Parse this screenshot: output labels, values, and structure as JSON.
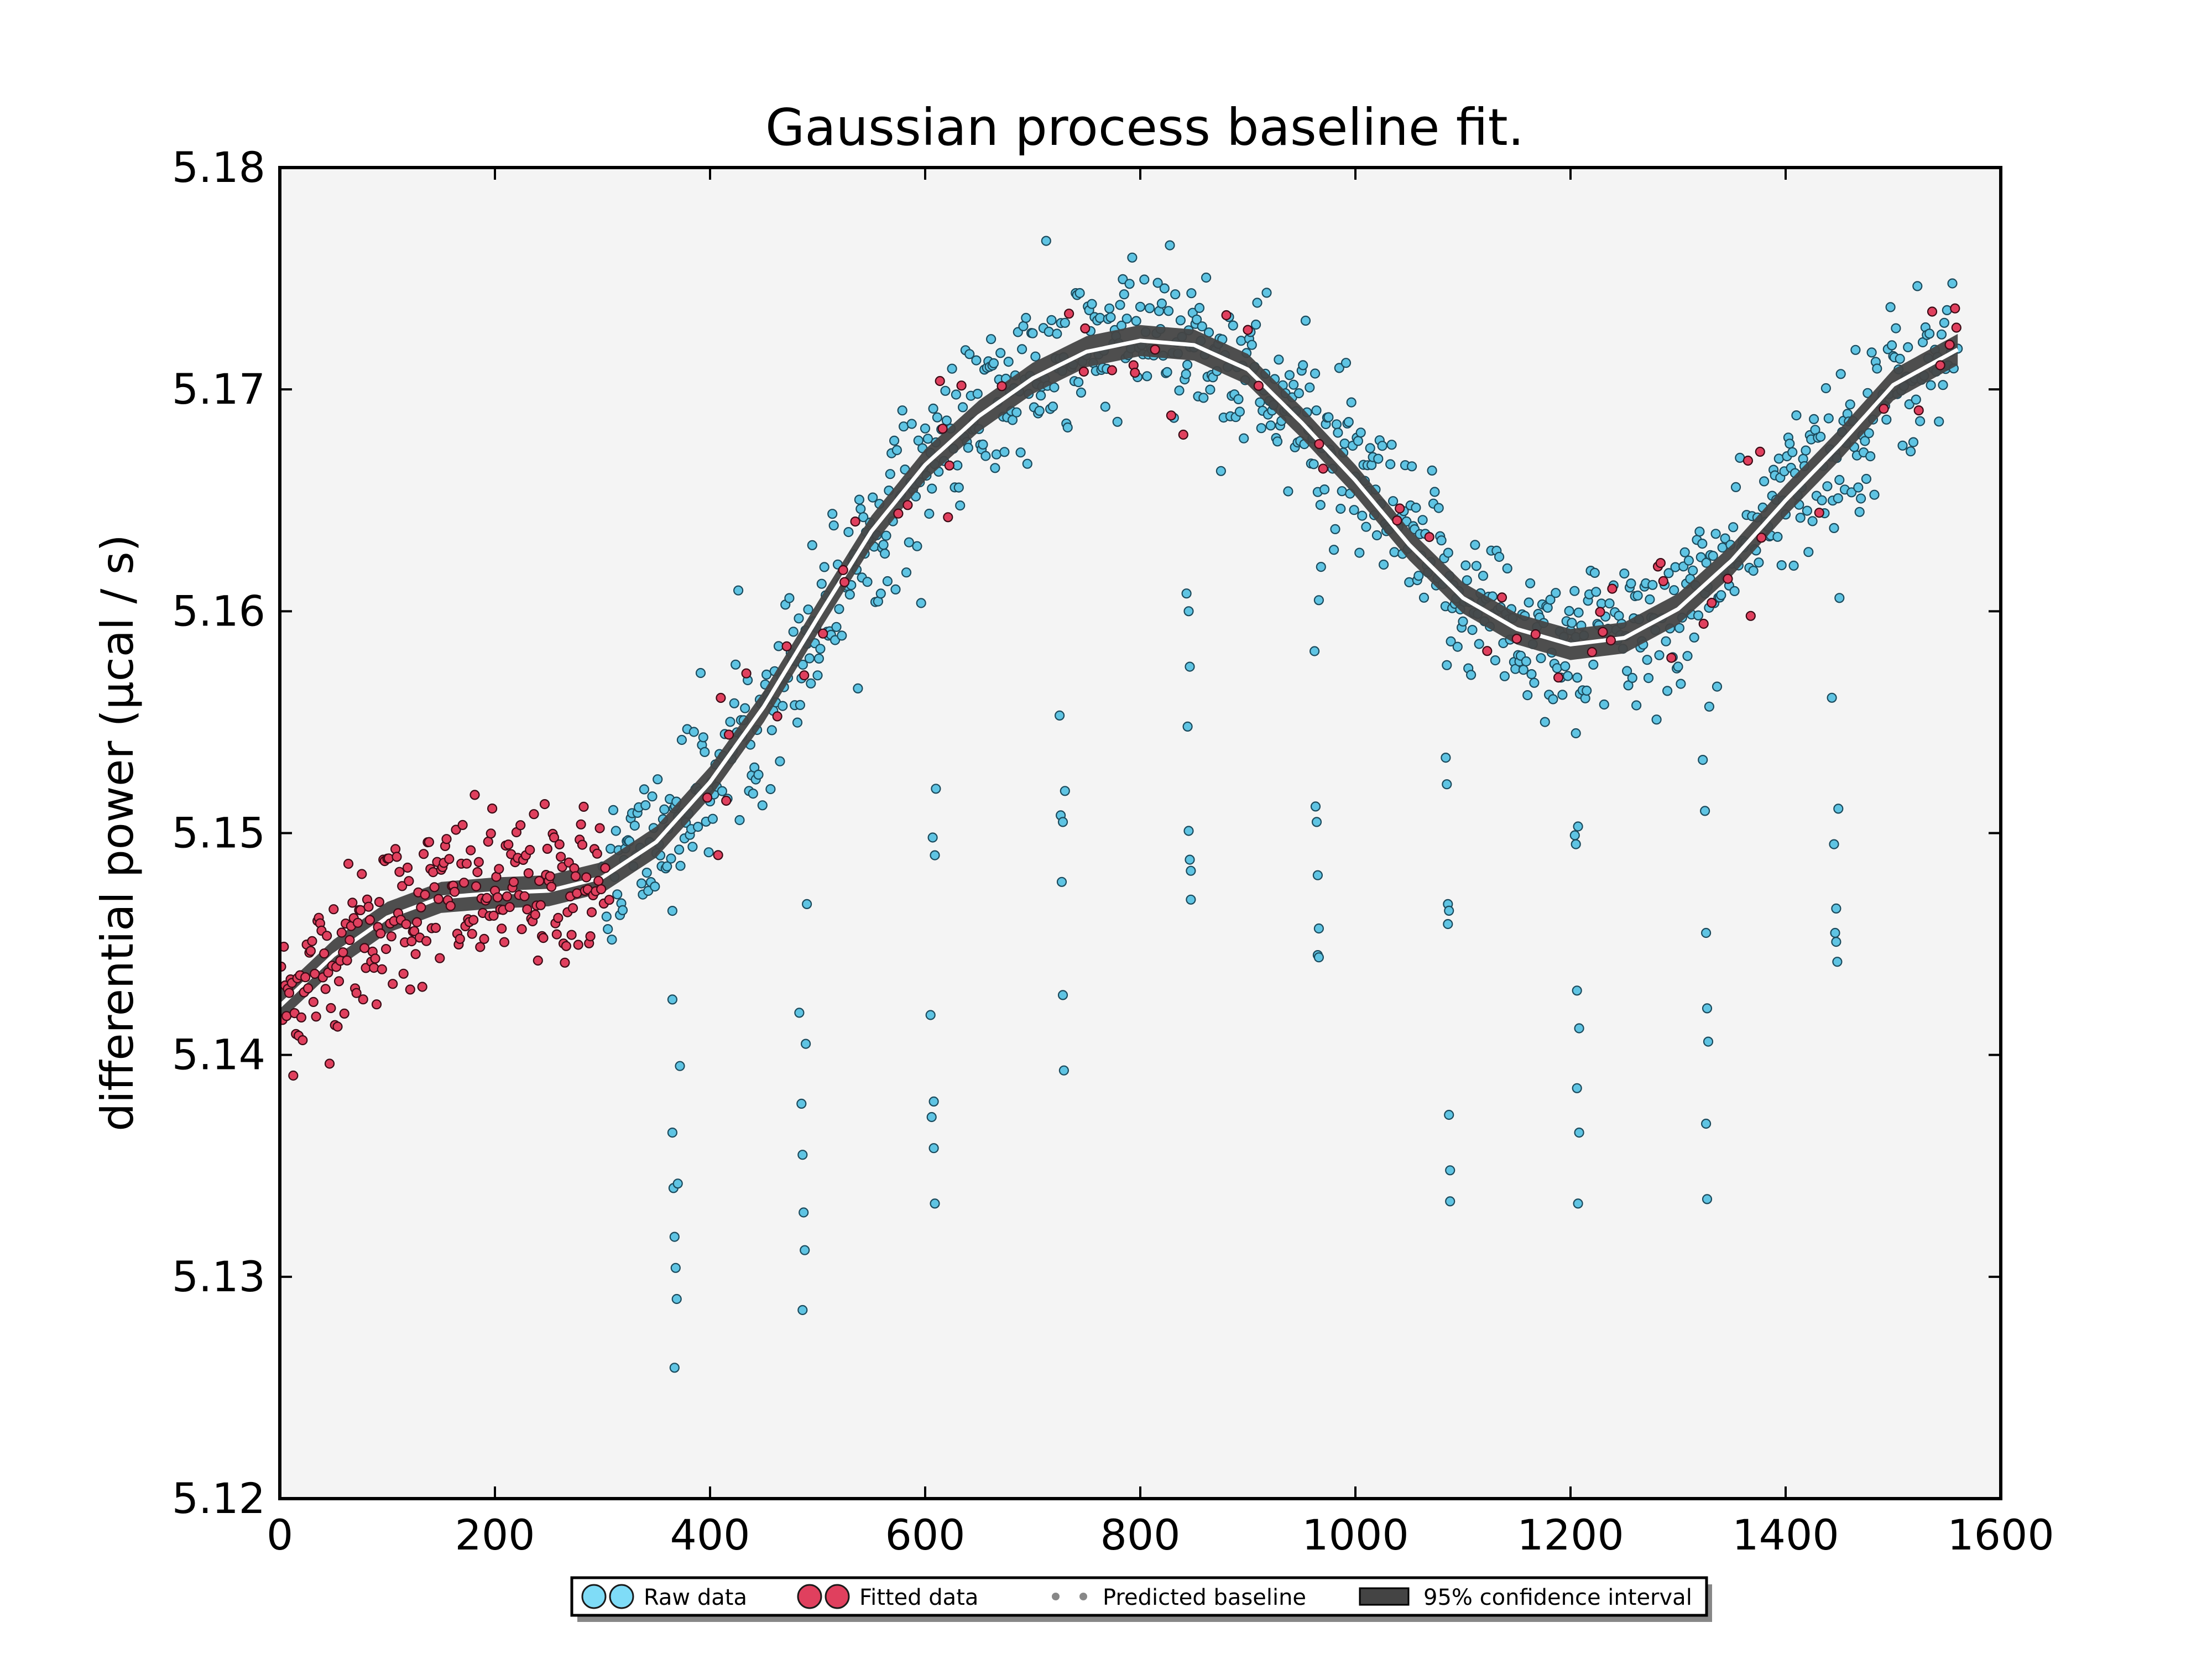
{
  "chart_data": {
    "type": "scatter",
    "title": "Gaussian process baseline fit.",
    "xlabel": "",
    "ylabel": "differential power (μcal / s)",
    "xlim": [
      0,
      1600
    ],
    "ylim": [
      5.12,
      5.18
    ],
    "xticks": [
      0,
      200,
      400,
      600,
      800,
      1000,
      1200,
      1400,
      1600
    ],
    "yticks": [
      5.12,
      5.13,
      5.14,
      5.15,
      5.16,
      5.17,
      5.18
    ],
    "xtick_labels": [
      "0",
      "200",
      "400",
      "600",
      "800",
      "1000",
      "1200",
      "1400",
      "1600"
    ],
    "ytick_labels": [
      "5.12",
      "5.13",
      "5.14",
      "5.15",
      "5.16",
      "5.17",
      "5.18"
    ],
    "grid": false,
    "legend_position": "bottom-center",
    "background_color": "#f4f4f4",
    "series": [
      {
        "name": "Raw data",
        "kind": "scatter",
        "color": "#5fc4e3",
        "note_points_are_approximate": true,
        "outliers": [
          [
            365,
            5.1365
          ],
          [
            366,
            5.134
          ],
          [
            367,
            5.1318
          ],
          [
            368,
            5.1304
          ],
          [
            369,
            5.129
          ],
          [
            367,
            5.1259
          ],
          [
            372,
            5.1395
          ],
          [
            365,
            5.1425
          ],
          [
            370,
            5.1342
          ],
          [
            483,
            5.1419
          ],
          [
            485,
            5.1378
          ],
          [
            486,
            5.1355
          ],
          [
            487,
            5.1329
          ],
          [
            488,
            5.1312
          ],
          [
            486,
            5.1285
          ],
          [
            489,
            5.1405
          ],
          [
            490,
            5.1468
          ],
          [
            605,
            5.1418
          ],
          [
            606,
            5.1372
          ],
          [
            608,
            5.1358
          ],
          [
            609,
            5.1333
          ],
          [
            607,
            5.1498
          ],
          [
            609,
            5.149
          ],
          [
            610,
            5.152
          ],
          [
            608,
            5.1379
          ],
          [
            725,
            5.1553
          ],
          [
            726,
            5.1508
          ],
          [
            727,
            5.1478
          ],
          [
            728,
            5.1427
          ],
          [
            729,
            5.1393
          ],
          [
            730,
            5.1519
          ],
          [
            728,
            5.1505
          ],
          [
            843,
            5.1608
          ],
          [
            845,
            5.16
          ],
          [
            846,
            5.1575
          ],
          [
            844,
            5.1548
          ],
          [
            845,
            5.1501
          ],
          [
            846,
            5.1488
          ],
          [
            847,
            5.1483
          ],
          [
            847,
            5.147
          ],
          [
            962,
            5.1582
          ],
          [
            963,
            5.1512
          ],
          [
            964,
            5.1505
          ],
          [
            965,
            5.1481
          ],
          [
            966,
            5.1457
          ],
          [
            965,
            5.1445
          ],
          [
            966,
            5.1444
          ],
          [
            968,
            5.162
          ],
          [
            966,
            5.1605
          ],
          [
            1084,
            5.1534
          ],
          [
            1085,
            5.1522
          ],
          [
            1086,
            5.1468
          ],
          [
            1087,
            5.1465
          ],
          [
            1086,
            5.1459
          ],
          [
            1087,
            5.1373
          ],
          [
            1088,
            5.1348
          ],
          [
            1088,
            5.1334
          ],
          [
            1204,
            5.1499
          ],
          [
            1205,
            5.1495
          ],
          [
            1207,
            5.1503
          ],
          [
            1206,
            5.1429
          ],
          [
            1208,
            5.1412
          ],
          [
            1206,
            5.1385
          ],
          [
            1208,
            5.1365
          ],
          [
            1207,
            5.1333
          ],
          [
            1205,
            5.1545
          ],
          [
            1323,
            5.1533
          ],
          [
            1325,
            5.151
          ],
          [
            1326,
            5.1455
          ],
          [
            1327,
            5.1421
          ],
          [
            1328,
            5.1406
          ],
          [
            1326,
            5.1369
          ],
          [
            1327,
            5.1335
          ],
          [
            1329,
            5.1557
          ],
          [
            1443,
            5.1561
          ],
          [
            1445,
            5.1495
          ],
          [
            1447,
            5.1466
          ],
          [
            1446,
            5.1455
          ],
          [
            1447,
            5.1451
          ],
          [
            1448,
            5.1442
          ],
          [
            1449,
            5.1511
          ],
          [
            1450,
            5.1606
          ]
        ]
      },
      {
        "name": "Fitted data",
        "kind": "scatter",
        "color": "#e0405e",
        "note_points_are_approximate": true,
        "outliers": []
      },
      {
        "name": "Predicted baseline",
        "kind": "line",
        "color": "#ffffff",
        "x": [
          0,
          50,
          100,
          150,
          200,
          250,
          300,
          350,
          400,
          450,
          500,
          550,
          600,
          650,
          700,
          750,
          800,
          850,
          900,
          950,
          1000,
          1050,
          1100,
          1150,
          1200,
          1250,
          1300,
          1350,
          1400,
          1450,
          1500,
          1560
        ],
        "y": [
          5.1422,
          5.1445,
          5.1462,
          5.1471,
          5.1473,
          5.1474,
          5.148,
          5.1496,
          5.1523,
          5.1557,
          5.1597,
          5.1636,
          5.1666,
          5.1688,
          5.1705,
          5.1717,
          5.1722,
          5.172,
          5.1709,
          5.1685,
          5.1659,
          5.163,
          5.1606,
          5.1592,
          5.1585,
          5.1588,
          5.1601,
          5.1623,
          5.165,
          5.1675,
          5.1702,
          5.1718
        ]
      },
      {
        "name": "95% confidence interval",
        "kind": "band",
        "color": "#444444",
        "half_width": 0.0007
      }
    ]
  },
  "legend": {
    "items": [
      {
        "label": "Raw data",
        "color": "#7fdcf7",
        "symbol": "circles"
      },
      {
        "label": "Fitted data",
        "color": "#e0405e",
        "symbol": "circles"
      },
      {
        "label": "Predicted baseline",
        "color": "#888888",
        "symbol": "dots"
      },
      {
        "label": "95% confidence interval",
        "color": "#444444",
        "symbol": "box"
      }
    ]
  }
}
